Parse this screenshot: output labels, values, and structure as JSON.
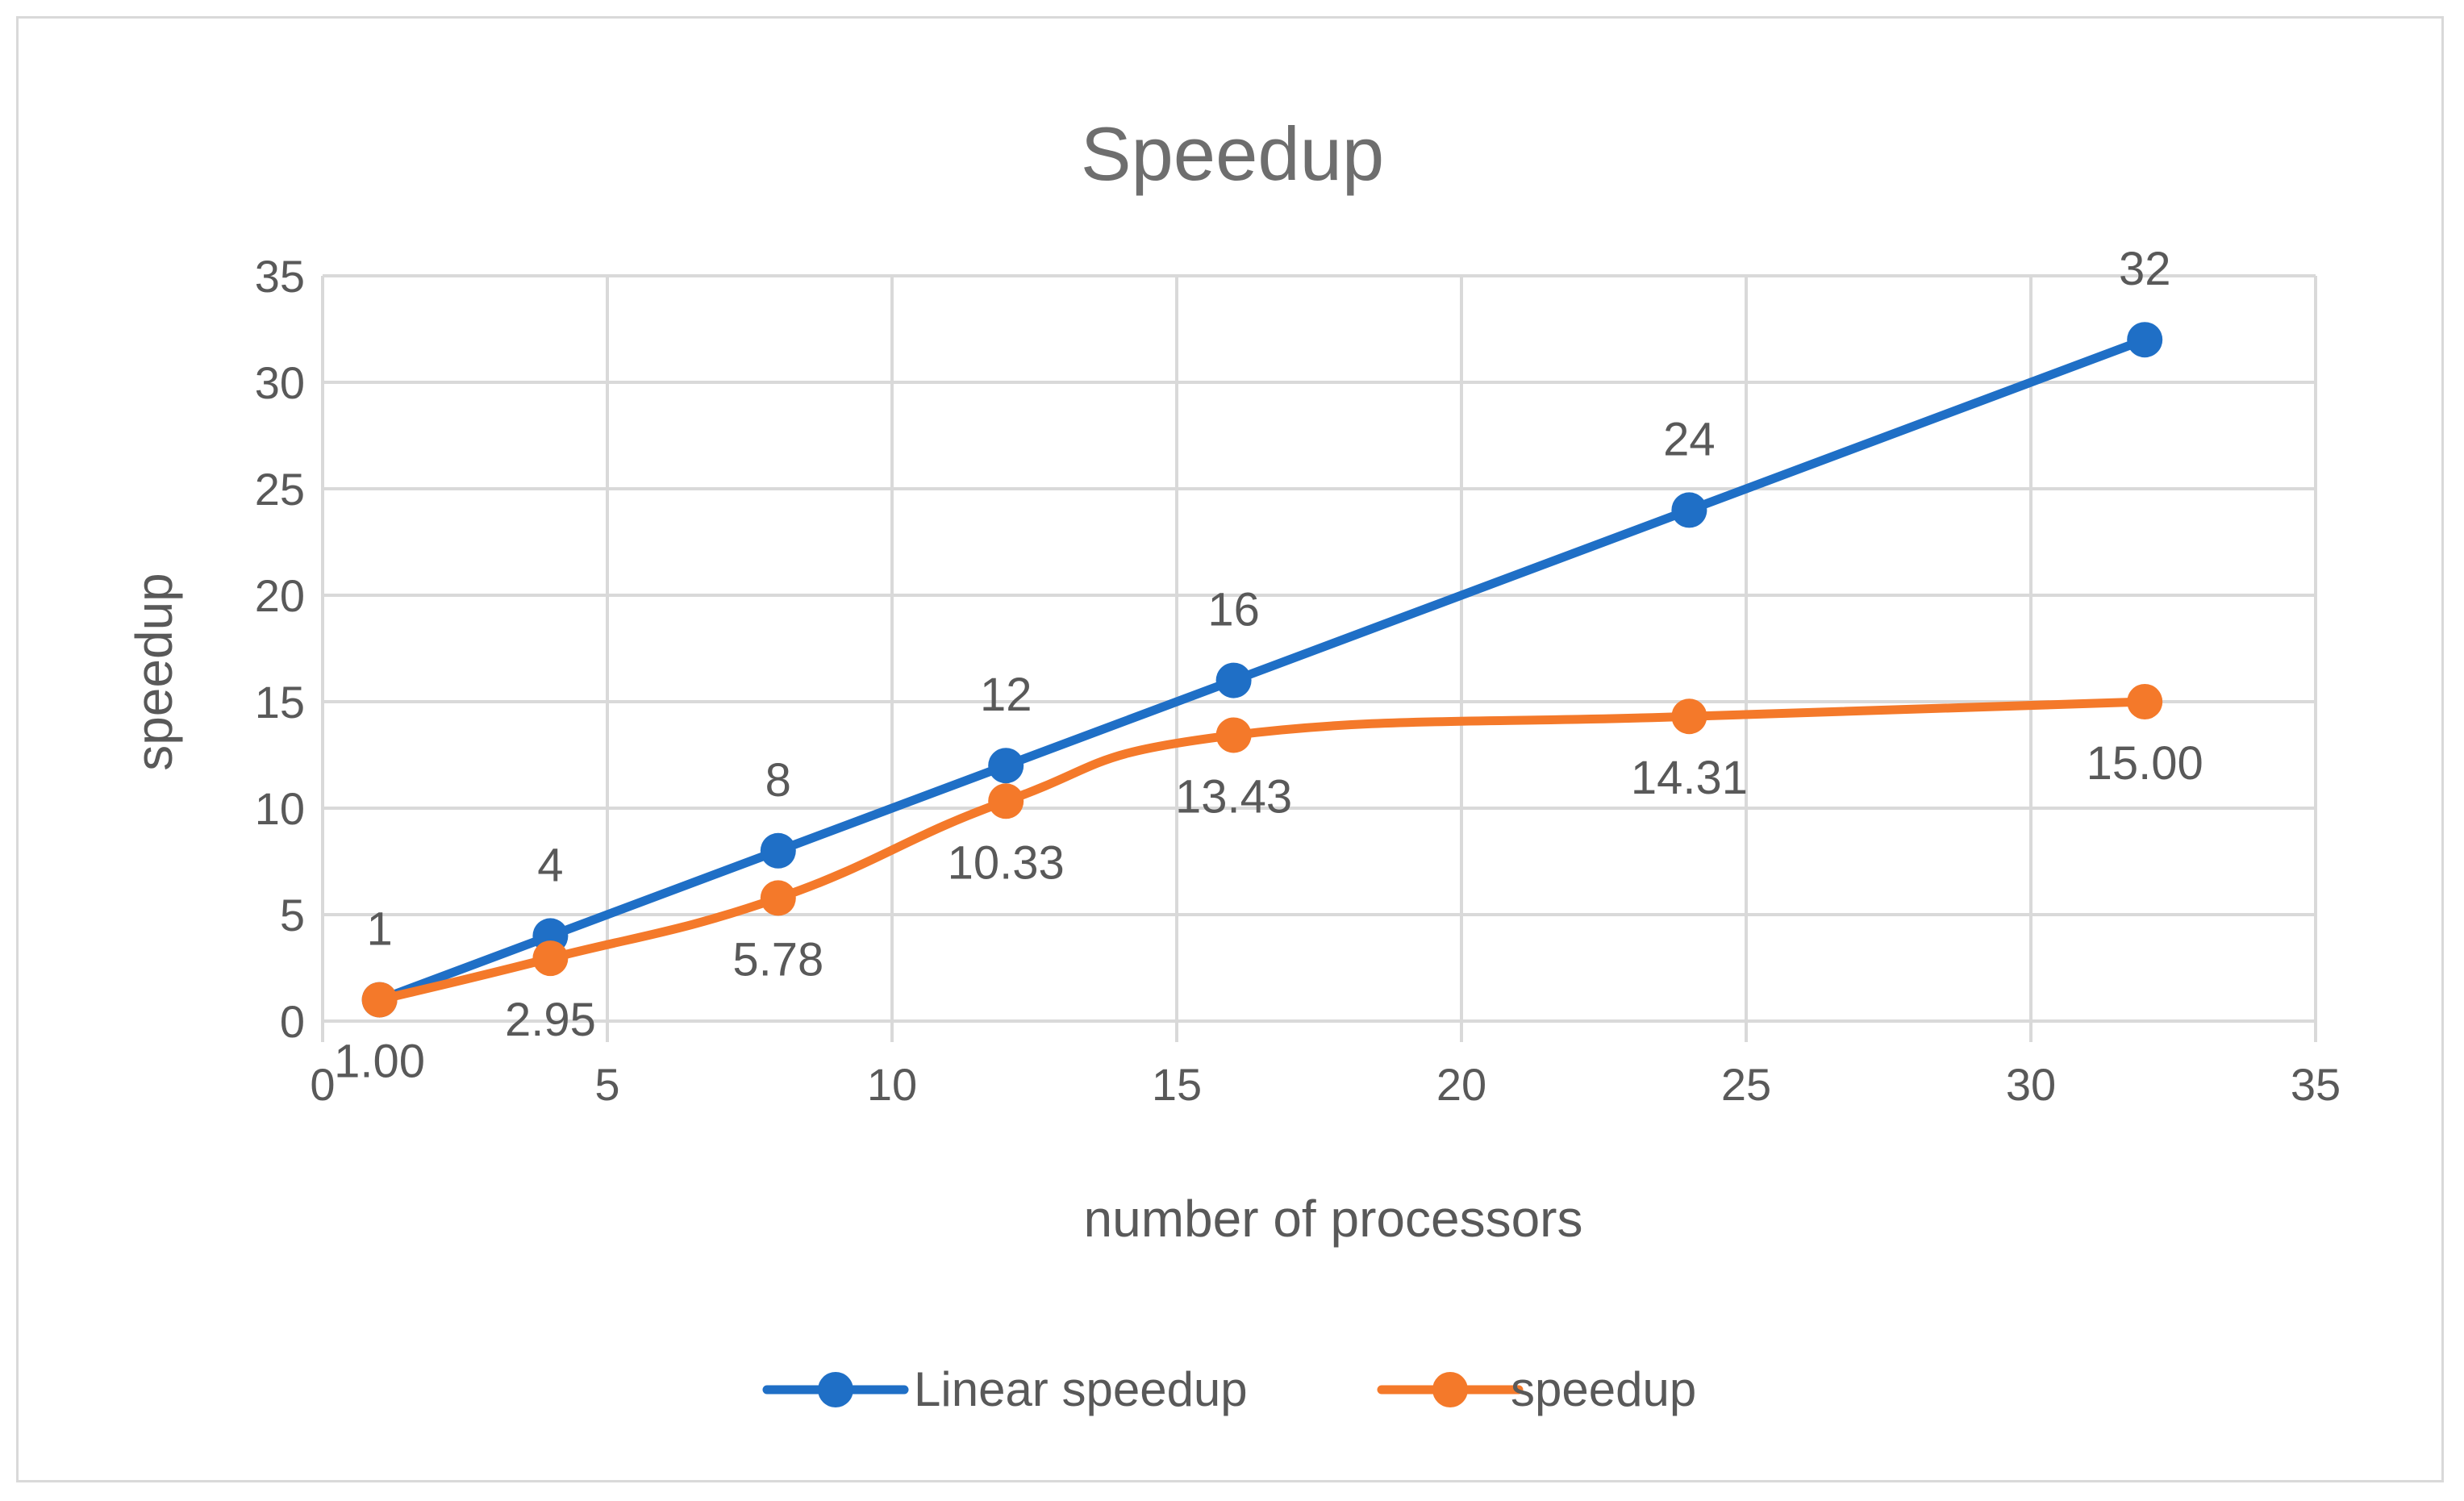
{
  "chart_data": {
    "type": "line",
    "title": "Speedup",
    "xlabel": "number of processors",
    "ylabel": "speedup",
    "xlim": [
      0,
      35
    ],
    "ylim": [
      0,
      35
    ],
    "x_ticks": [
      0,
      5,
      10,
      15,
      20,
      25,
      30,
      35
    ],
    "y_ticks": [
      0,
      5,
      10,
      15,
      20,
      25,
      30,
      35
    ],
    "grid": true,
    "legend_position": "bottom",
    "series": [
      {
        "name": "Linear speedup",
        "color": "#1f6fc6",
        "smooth": false,
        "label_position": "above",
        "x": [
          1,
          4,
          8,
          12,
          16,
          24,
          32
        ],
        "y": [
          1,
          4,
          8,
          12,
          16,
          24,
          32
        ],
        "labels": [
          "1",
          "4",
          "8",
          "12",
          "16",
          "24",
          "32"
        ]
      },
      {
        "name": "speedup",
        "color": "#f4792a",
        "smooth": true,
        "label_position": "below",
        "x": [
          1,
          4,
          8,
          12,
          16,
          24,
          32
        ],
        "y": [
          1.0,
          2.95,
          5.78,
          10.33,
          13.43,
          14.31,
          15.0
        ],
        "labels": [
          "1.00",
          "2.95",
          "5.78",
          "10.33",
          "13.43",
          "14.31",
          "15.00"
        ]
      }
    ]
  }
}
